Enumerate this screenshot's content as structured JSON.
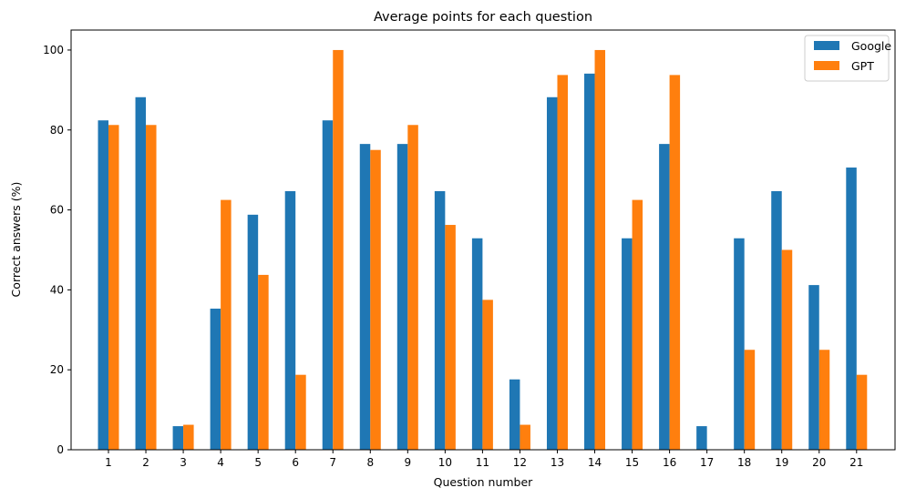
{
  "chart_data": {
    "type": "bar",
    "title": "Average points for each question",
    "xlabel": "Question number",
    "ylabel": "Correct answers (%)",
    "categories": [
      "1",
      "2",
      "3",
      "4",
      "5",
      "6",
      "7",
      "8",
      "9",
      "10",
      "11",
      "12",
      "13",
      "14",
      "15",
      "16",
      "17",
      "18",
      "19",
      "20",
      "21"
    ],
    "series": [
      {
        "name": "Google",
        "color": "#1f77b4",
        "values": [
          82.4,
          88.2,
          5.9,
          35.3,
          58.8,
          64.7,
          82.4,
          76.5,
          76.5,
          64.7,
          52.9,
          17.6,
          88.2,
          94.1,
          52.9,
          76.5,
          5.9,
          52.9,
          64.7,
          41.2,
          70.6
        ]
      },
      {
        "name": "GPT",
        "color": "#ff7f0e",
        "values": [
          81.25,
          81.25,
          6.25,
          62.5,
          43.75,
          18.75,
          100,
          75,
          81.25,
          56.25,
          37.5,
          6.25,
          93.75,
          100,
          62.5,
          93.75,
          0,
          25,
          50,
          25,
          18.75
        ]
      }
    ],
    "ylim": [
      0,
      105
    ],
    "yticks": [
      "0",
      "20",
      "40",
      "60",
      "80",
      "100"
    ],
    "grid": false,
    "legend_position": "top-right"
  }
}
